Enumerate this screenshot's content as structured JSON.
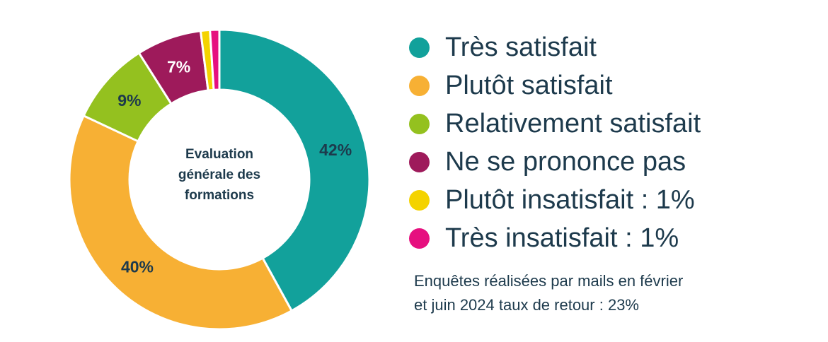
{
  "chart_data": {
    "type": "pie",
    "variant": "donut",
    "title": "Evaluation générale des formations",
    "slices": [
      {
        "name": "Très satisfait",
        "value": 42,
        "label": "42%",
        "color": "#12a19b",
        "label_color": "#1d3a4c"
      },
      {
        "name": "Plutôt satisfait",
        "value": 40,
        "label": "40%",
        "color": "#f7b034",
        "label_color": "#1d3a4c"
      },
      {
        "name": "Relativement satisfait",
        "value": 9,
        "label": "9%",
        "color": "#94c11f",
        "label_color": "#1d3a4c"
      },
      {
        "name": "Ne se prononce pas",
        "value": 7,
        "label": "7%",
        "color": "#9e1a5b",
        "label_color": "#ffffff"
      },
      {
        "name": "Plutôt insatisfait",
        "value": 1,
        "label": "",
        "color": "#f4d300",
        "label_color": "#1d3a4c"
      },
      {
        "name": "Très insatisfait",
        "value": 1,
        "label": "",
        "color": "#e6107f",
        "label_color": "#1d3a4c"
      }
    ],
    "legend": [
      "Très satisfait",
      "Plutôt satisfait",
      "Relativement satisfait",
      "Ne se prononce pas",
      "Plutôt insatisfait : 1%",
      "Très insatisfait : 1%"
    ],
    "legend_position": "right"
  },
  "center": {
    "line1": "Evaluation",
    "line2": "générale des",
    "line3": "formations"
  },
  "note": {
    "line1": "Enquêtes réalisées par mails en février",
    "line2": "et juin  2024 taux de retour : 23%"
  }
}
